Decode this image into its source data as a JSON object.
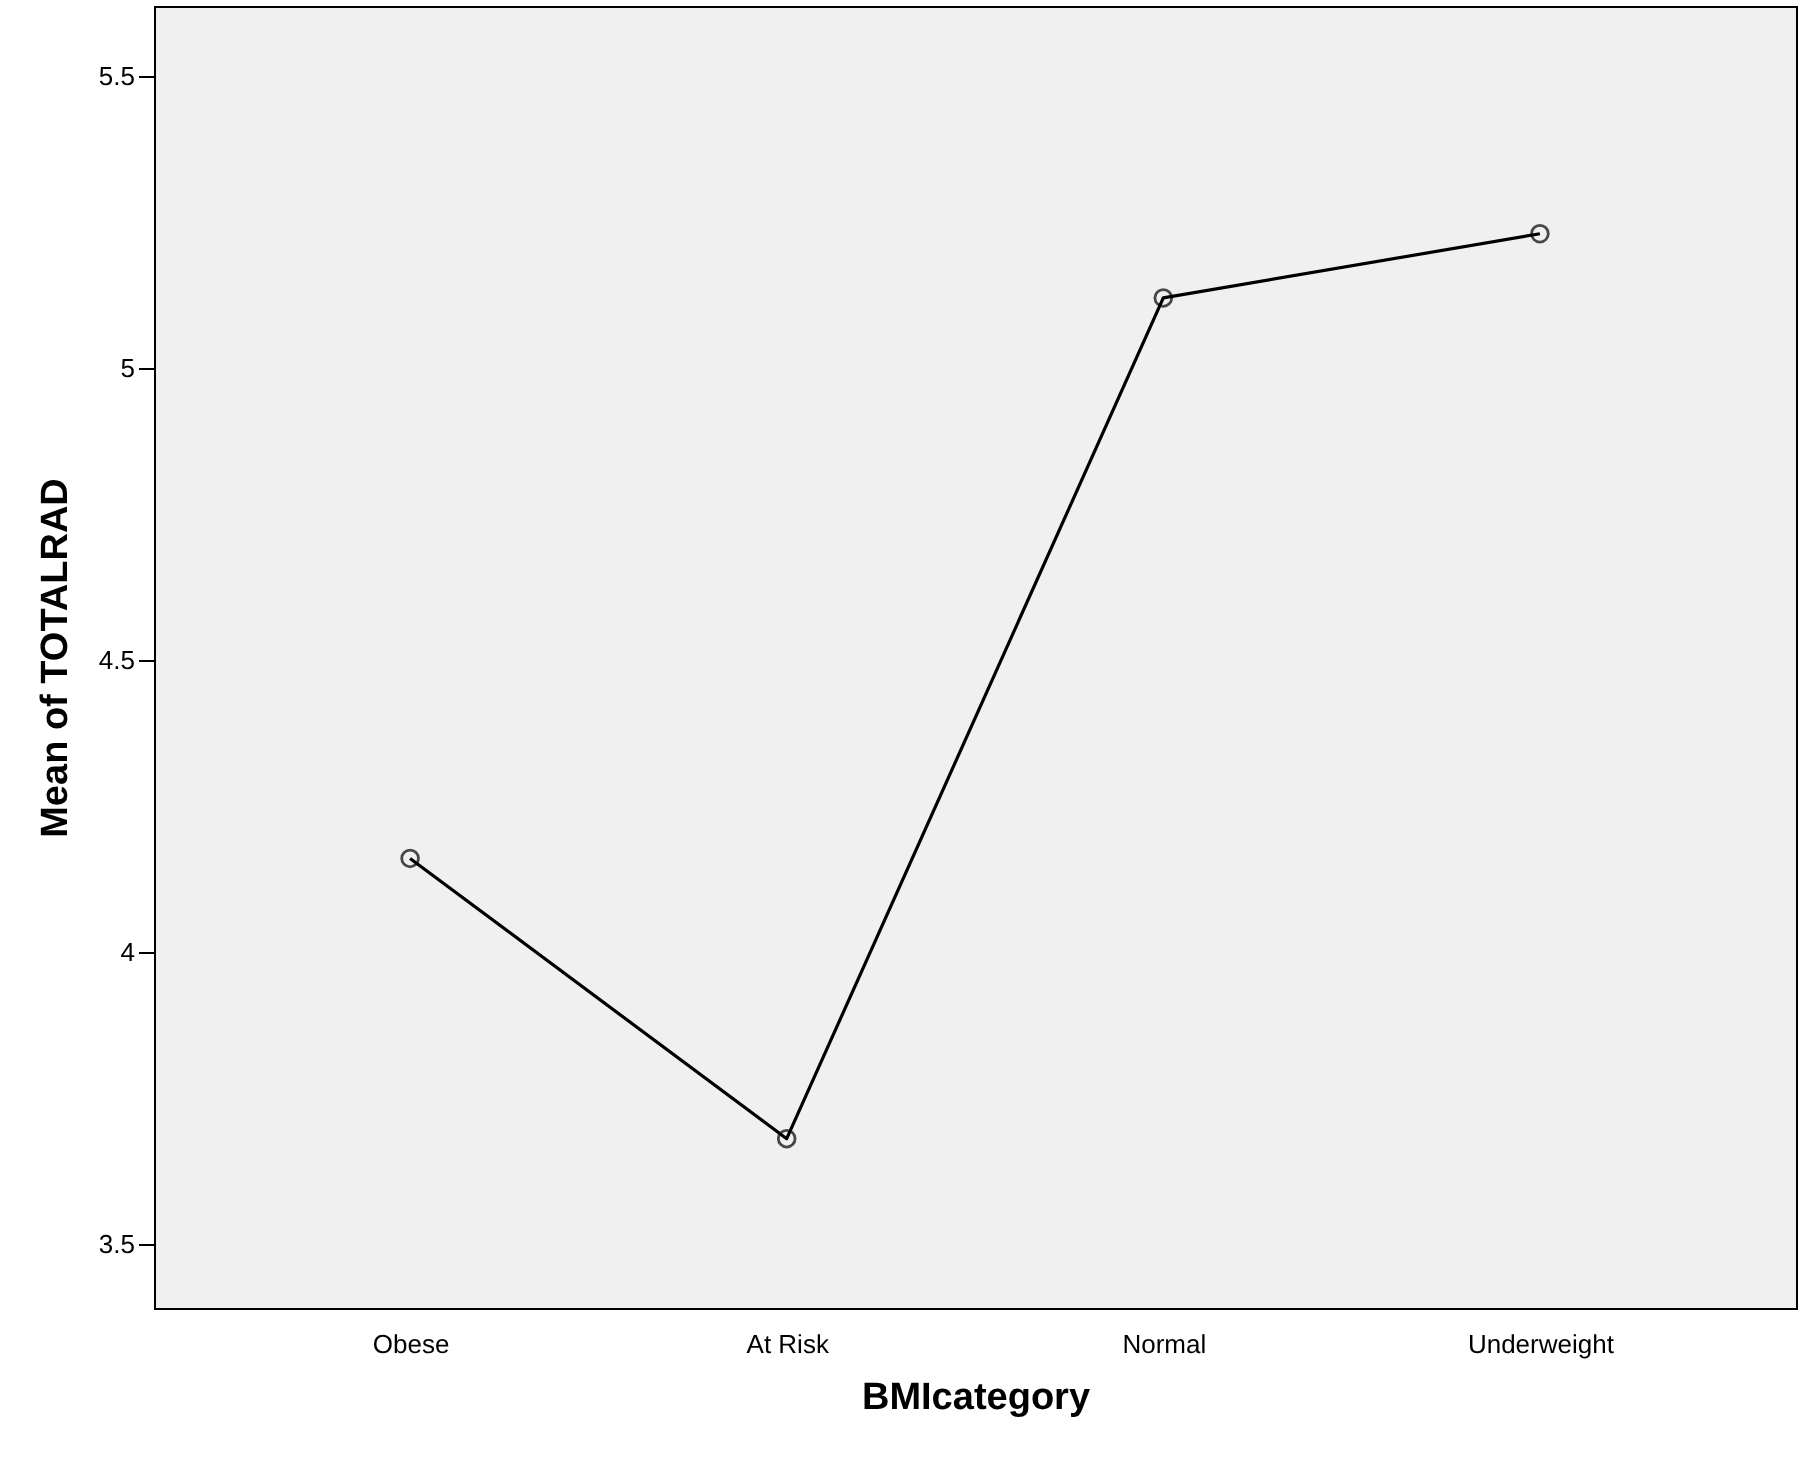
{
  "chart_data": {
    "type": "line",
    "xlabel": "BMIcategory",
    "ylabel": "Mean of TOTALRAD",
    "categories": [
      "Obese",
      "At Risk",
      "Normal",
      "Underweight"
    ],
    "series": [
      {
        "color": "#000000",
        "values": [
          4.16,
          3.68,
          5.12,
          5.23
        ]
      }
    ],
    "ylim": [
      3.39,
      5.62
    ],
    "yticks": [
      3.5,
      4,
      4.5,
      5,
      5.5
    ],
    "grid": false,
    "marker": "circle",
    "line_style": "solid"
  }
}
